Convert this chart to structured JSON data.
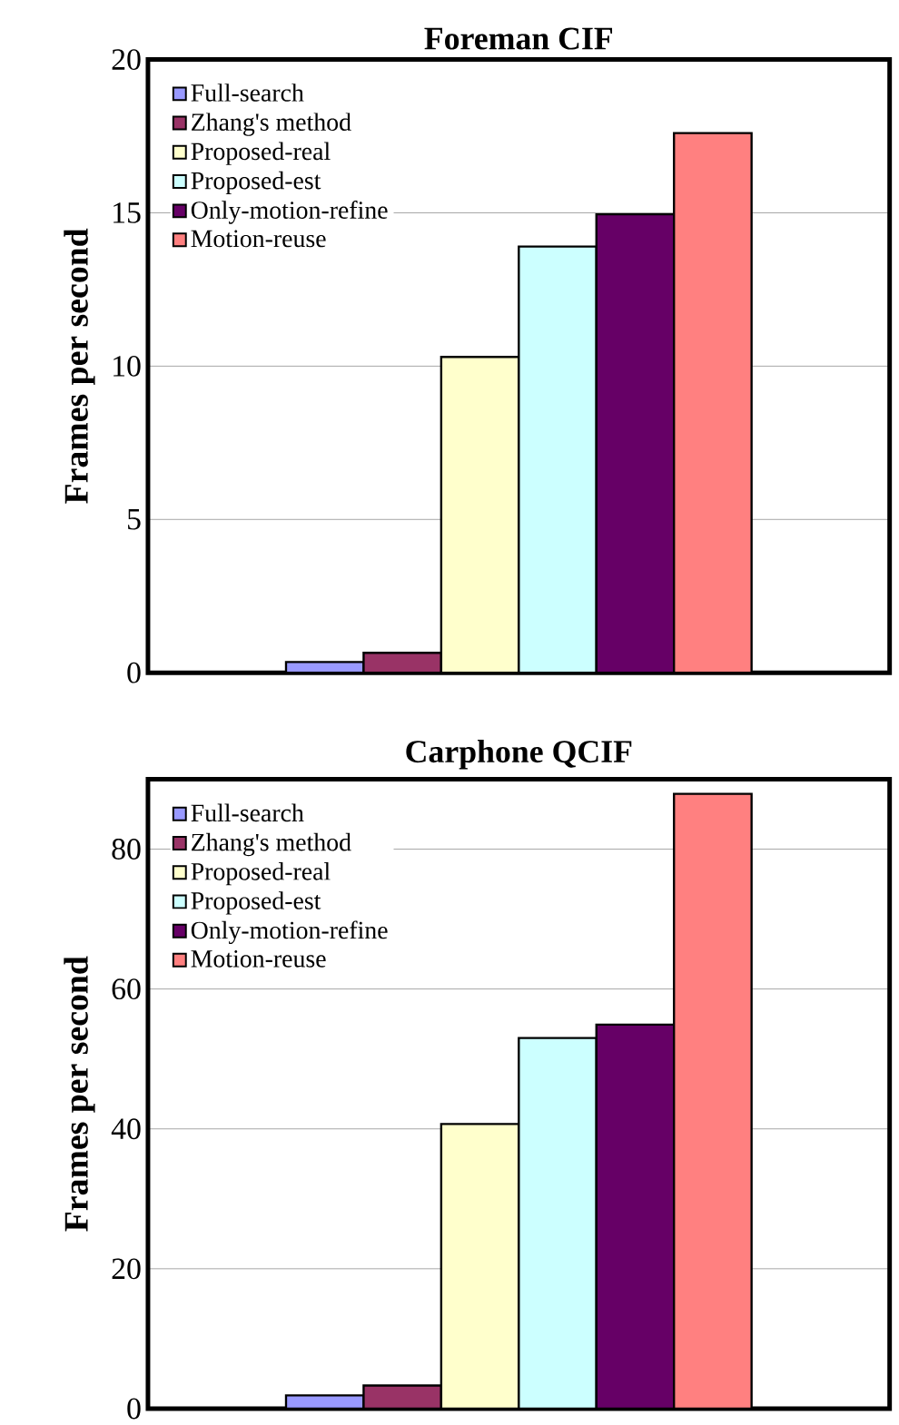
{
  "chart_data": [
    {
      "type": "bar",
      "title": "Foreman CIF",
      "ylabel": "Frames per second",
      "categories": [
        null
      ],
      "ylim": [
        0,
        20
      ],
      "yticks": [
        0,
        5,
        10,
        15,
        20
      ],
      "grid": "y",
      "legend": "top left",
      "series": [
        {
          "name": "Full-search",
          "color": "#9999ff",
          "values": [
            0.35
          ]
        },
        {
          "name": "Zhang's method",
          "color": "#993366",
          "values": [
            0.65
          ]
        },
        {
          "name": "Proposed-real",
          "color": "#ffffcc",
          "values": [
            10.3
          ]
        },
        {
          "name": "Proposed-est",
          "color": "#ccffff",
          "values": [
            13.9
          ]
        },
        {
          "name": "Only-motion-refine",
          "color": "#660066",
          "values": [
            14.95
          ]
        },
        {
          "name": "Motion-reuse",
          "color": "#ff8080",
          "values": [
            17.6
          ]
        }
      ]
    },
    {
      "type": "bar",
      "title": "Carphone QCIF",
      "ylabel": "Frames per second",
      "categories": [
        null
      ],
      "ylim": [
        0,
        90
      ],
      "yticks": [
        0,
        20,
        40,
        60,
        80
      ],
      "grid": "y",
      "legend": "top left",
      "series": [
        {
          "name": "Full-search",
          "color": "#9999ff",
          "values": [
            1.9
          ]
        },
        {
          "name": "Zhang's method",
          "color": "#993366",
          "values": [
            3.3
          ]
        },
        {
          "name": "Proposed-real",
          "color": "#ffffcc",
          "values": [
            40.7
          ]
        },
        {
          "name": "Proposed-est",
          "color": "#ccffff",
          "values": [
            53
          ]
        },
        {
          "name": "Only-motion-refine",
          "color": "#660066",
          "values": [
            54.9
          ]
        },
        {
          "name": "Motion-reuse",
          "color": "#ff8080",
          "values": [
            87.9
          ]
        }
      ]
    }
  ]
}
